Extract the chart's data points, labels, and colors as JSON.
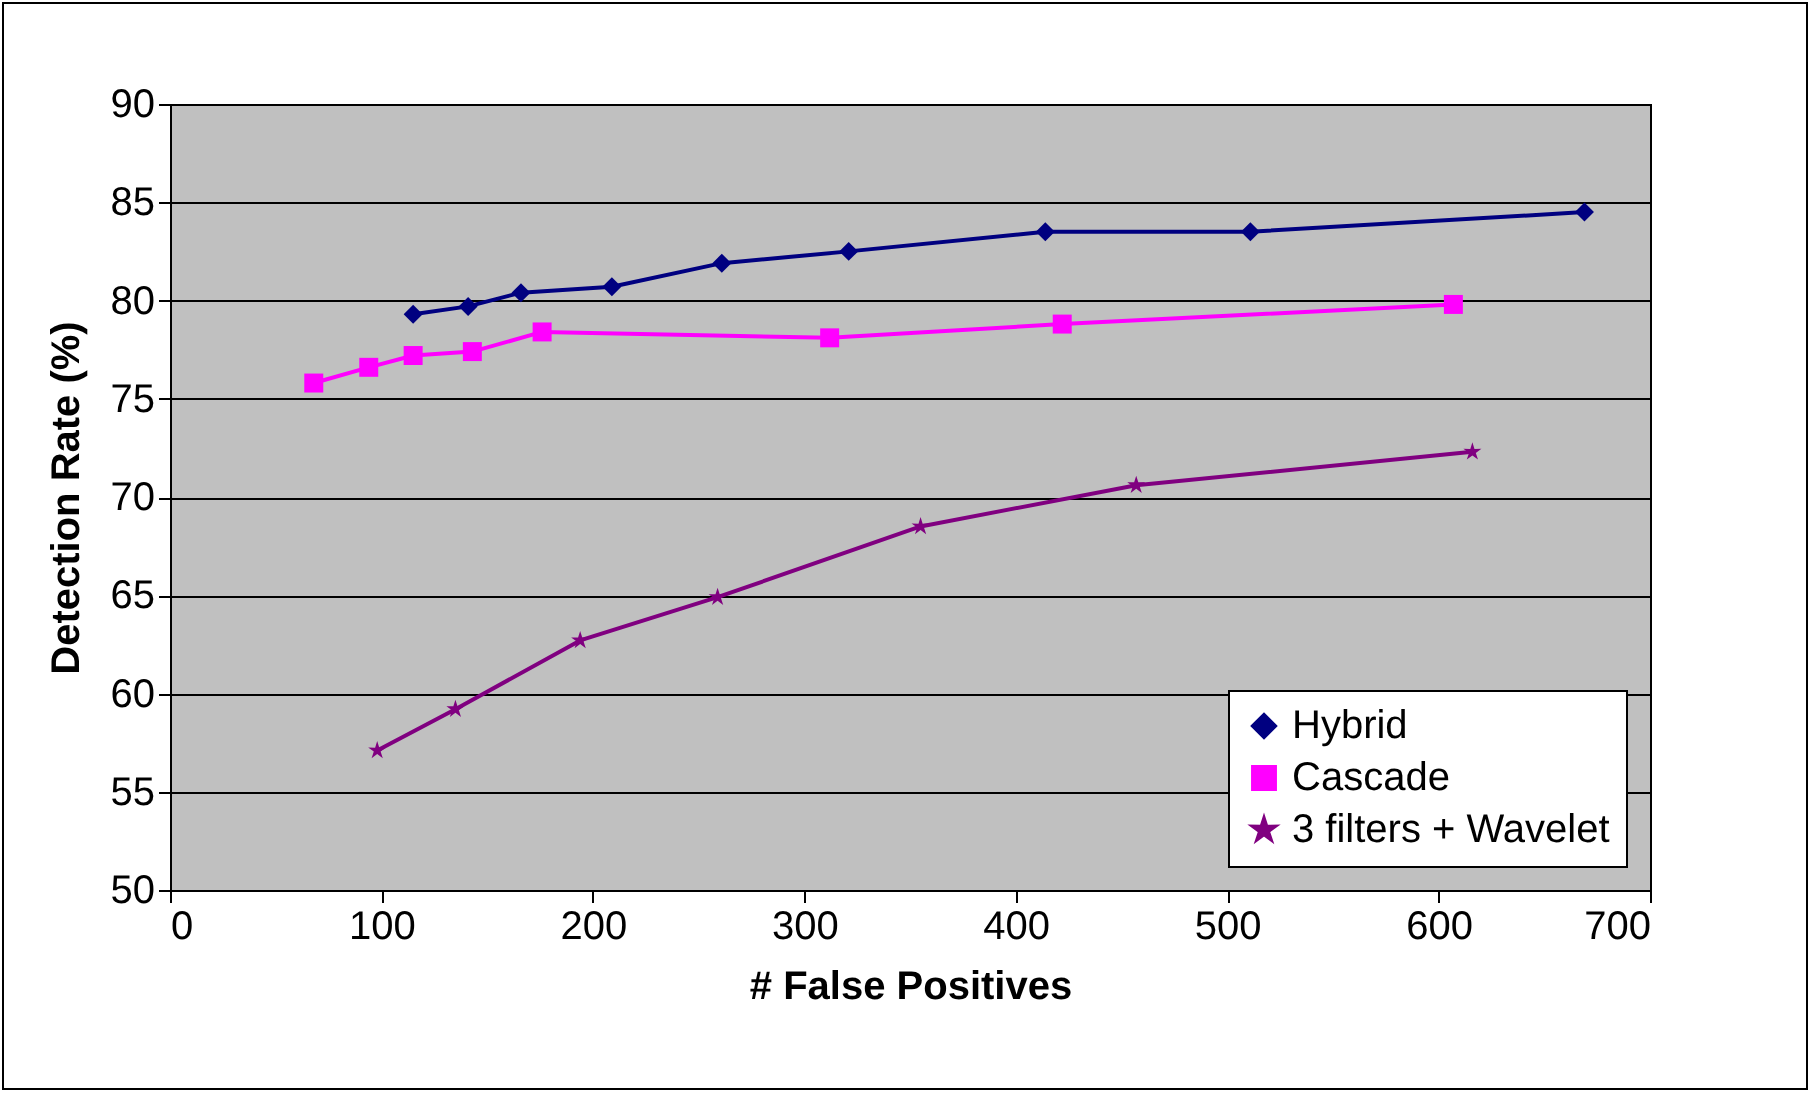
{
  "chart_data": {
    "type": "line",
    "xlabel": "# False Positives",
    "ylabel": "Detection Rate (%)",
    "xlim": [
      0,
      700
    ],
    "xticks": [
      0,
      100,
      200,
      300,
      400,
      500,
      600,
      700
    ],
    "ylim": [
      50,
      90
    ],
    "yticks": [
      50,
      55,
      60,
      65,
      70,
      75,
      80,
      85,
      90
    ],
    "grid": "y",
    "legend": "bottom right",
    "series": [
      {
        "name": "Hybrid",
        "color": "#000080",
        "marker": "diamond",
        "x": [
          115,
          141,
          166,
          209,
          261,
          321,
          414,
          511,
          669
        ],
        "values": [
          79.3,
          79.7,
          80.4,
          80.7,
          81.9,
          82.5,
          83.5,
          83.5,
          84.5
        ]
      },
      {
        "name": "Cascade",
        "color": "#ff00ff",
        "marker": "square",
        "x": [
          68,
          94,
          115,
          143,
          176,
          312,
          422,
          607
        ],
        "values": [
          75.8,
          76.6,
          77.2,
          77.4,
          78.4,
          78.1,
          78.8,
          79.8
        ]
      },
      {
        "name": "3 filters + Wavelet",
        "color": "#800080",
        "marker": "star",
        "x": [
          98,
          135,
          194,
          259,
          355,
          457,
          616
        ],
        "values": [
          57.1,
          59.2,
          62.7,
          64.9,
          68.5,
          70.6,
          72.3
        ]
      }
    ]
  }
}
